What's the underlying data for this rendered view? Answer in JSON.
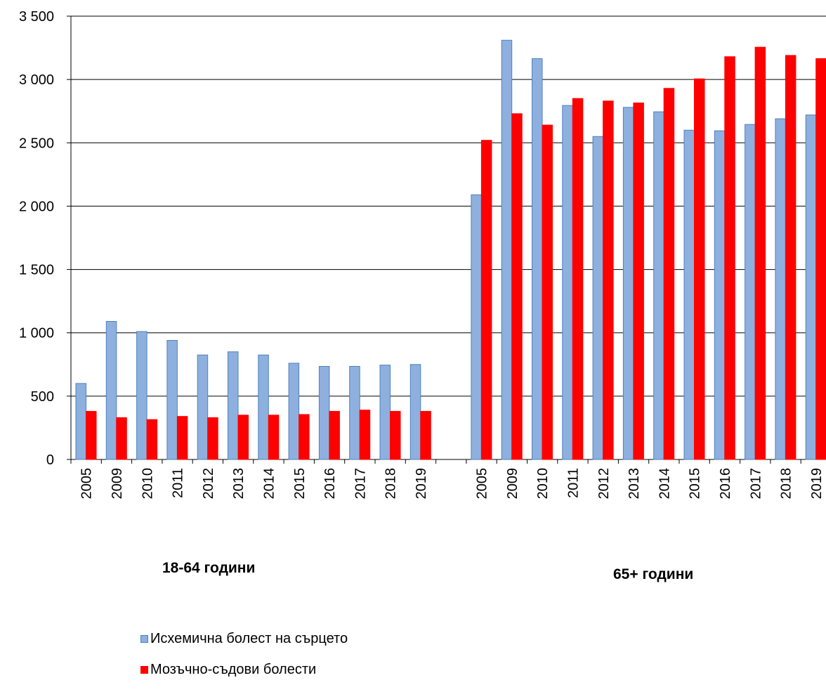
{
  "chart_data": {
    "type": "bar",
    "ylim": [
      0,
      3500
    ],
    "y_ticks": [
      0,
      500,
      1000,
      1500,
      2000,
      2500,
      3000,
      3500
    ],
    "y_tick_labels": [
      "0",
      "500",
      "1 000",
      "1 500",
      "2 000",
      "2 500",
      "3 000",
      "3 500"
    ],
    "grid": true,
    "legend_position": "bottom-left",
    "groups": [
      {
        "label": "18-64 години",
        "categories": [
          "2005",
          "2009",
          "2010",
          "2011",
          "2012",
          "2013",
          "2014",
          "2015",
          "2016",
          "2017",
          "2018",
          "2019"
        ],
        "series": [
          {
            "name": "Исхемична болест на сърцето",
            "values": [
              600,
              1090,
              1010,
              940,
              825,
              850,
              825,
              760,
              735,
              735,
              745,
              750
            ]
          },
          {
            "name": "Мозъчно-съдови болести",
            "values": [
              380,
              330,
              315,
              340,
              330,
              350,
              350,
              355,
              380,
              390,
              380,
              380
            ]
          }
        ]
      },
      {
        "label": "65+ години",
        "categories": [
          "2005",
          "2009",
          "2010",
          "2011",
          "2012",
          "2013",
          "2014",
          "2015",
          "2016",
          "2017",
          "2018",
          "2019"
        ],
        "series": [
          {
            "name": "Исхемична болест на сърцето",
            "values": [
              2090,
              3310,
              3165,
              2795,
              2550,
              2780,
              2745,
              2600,
              2595,
              2645,
              2690,
              2720
            ]
          },
          {
            "name": "Мозъчно-съдови болести",
            "values": [
              2520,
              2730,
              2640,
              2850,
              2830,
              2815,
              2930,
              3005,
              3180,
              3255,
              3190,
              3165
            ]
          }
        ]
      }
    ],
    "series_colors": {
      "Исхемична болест на сърцето": "#8EB0DE",
      "Мозъчно-съдови болести": "#FF0000"
    },
    "series_border_colors": {
      "Исхемична болест на сърцето": "#4F81BD",
      "Мозъчно-съдови болести": "#FF0000"
    }
  },
  "legend": {
    "items": [
      {
        "label": "Исхемична болест на сърцето"
      },
      {
        "label": "Мозъчно-съдови болести"
      }
    ]
  }
}
